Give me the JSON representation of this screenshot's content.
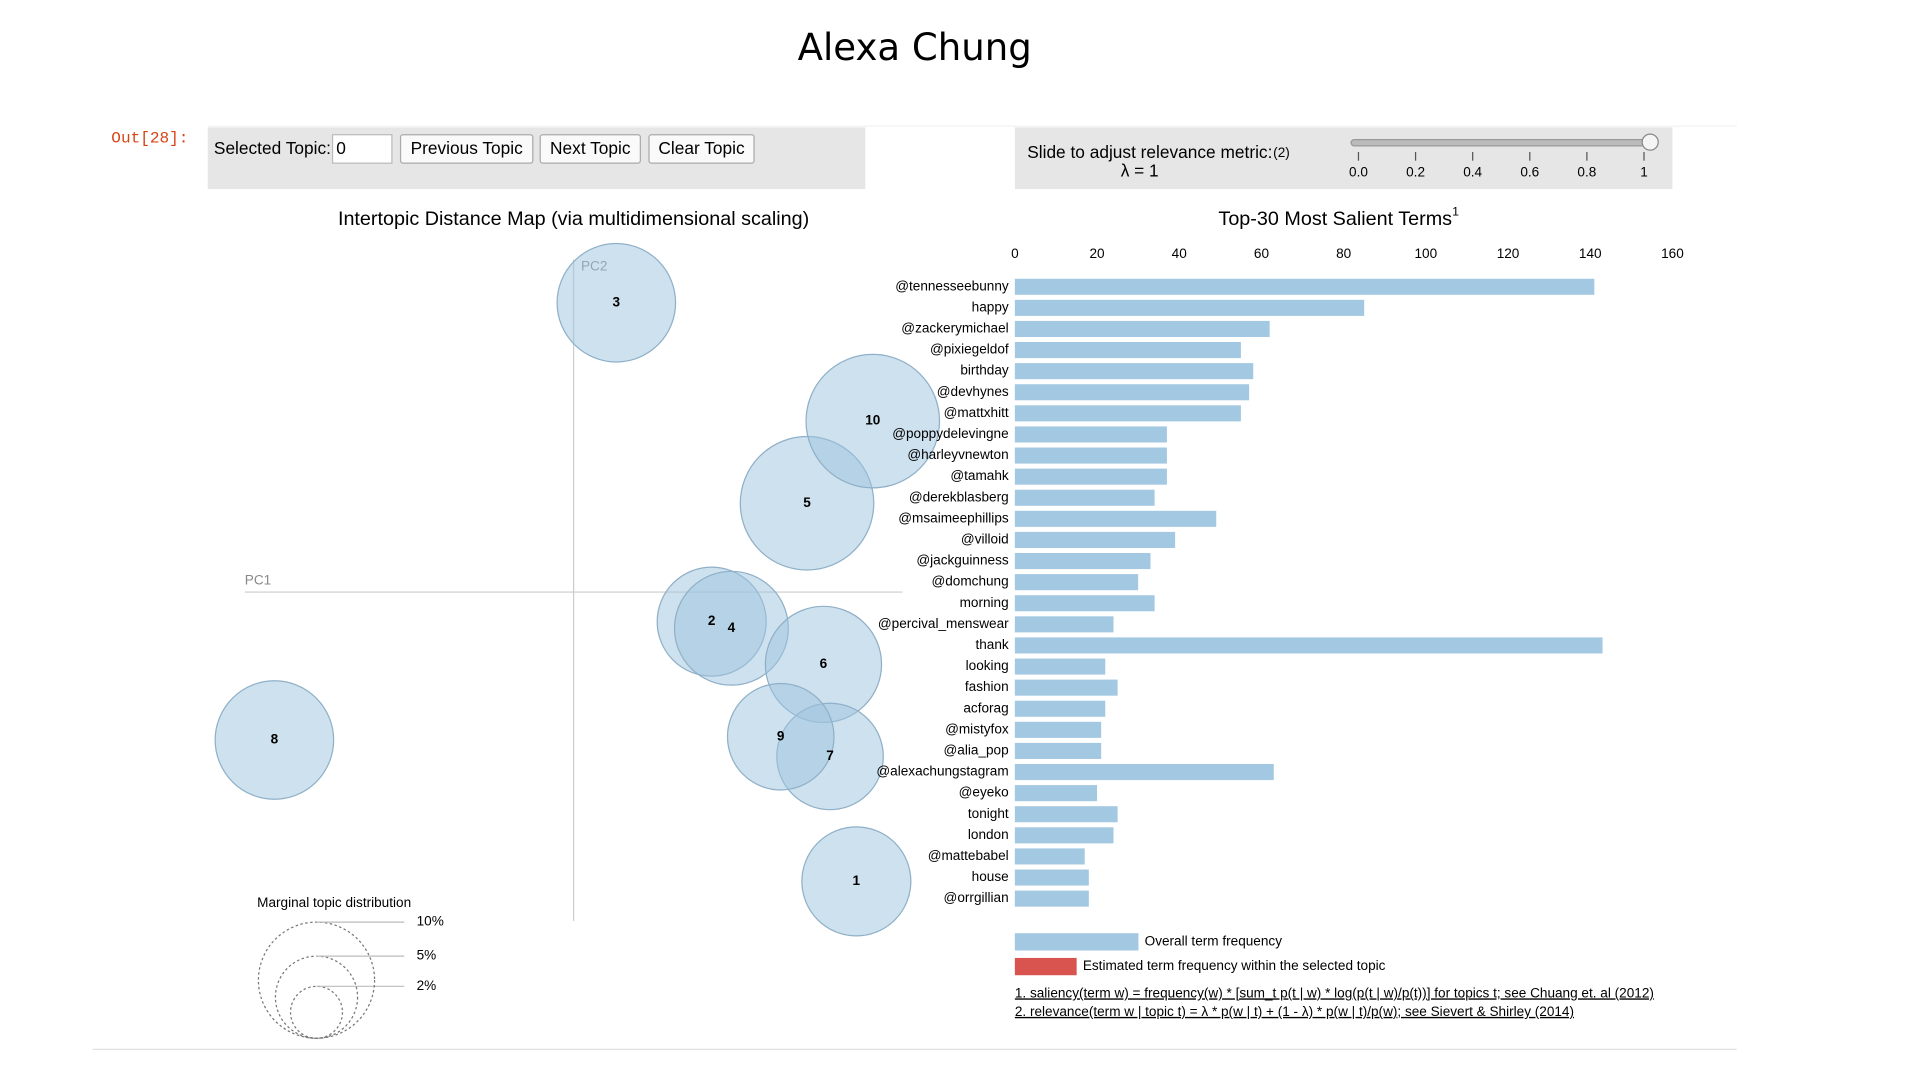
{
  "header": {
    "title": "Alexa Chung",
    "prompt": "Out[28]:"
  },
  "controls": {
    "selected_topic_label": "Selected Topic:",
    "selected_topic_value": "0",
    "buttons": [
      "Previous Topic",
      "Next Topic",
      "Clear Topic"
    ],
    "slider": {
      "label": "Slide to adjust relevance metric:",
      "label_note": "(2)",
      "lambda": "λ = 1",
      "value": 1,
      "range": [
        0,
        1
      ],
      "ticks": [
        {
          "value": 0,
          "label": "0.0"
        },
        {
          "value": 0.2,
          "label": "0.2"
        },
        {
          "value": 0.4,
          "label": "0.4"
        },
        {
          "value": 0.6,
          "label": "0.6"
        },
        {
          "value": 0.8,
          "label": "0.8"
        },
        1
      ]
    }
  },
  "chart_data": [
    {
      "type": "bubble",
      "title": "Intertopic Distance Map (via multidimensional scaling)",
      "x_label": "PC1",
      "y_label": "PC2",
      "xlim": [
        -1,
        1
      ],
      "ylim": [
        -1,
        1
      ],
      "color": "#9dc3de",
      "labels": [
        1,
        2,
        3,
        4,
        5,
        6,
        7,
        8,
        9,
        10
      ],
      "x": [
        0.86,
        0.42,
        0.13,
        0.48,
        0.71,
        0.76,
        0.78,
        -0.91,
        0.63,
        0.91
      ],
      "y": [
        -0.88,
        -0.09,
        0.88,
        -0.11,
        0.27,
        -0.22,
        -0.5,
        -0.45,
        -0.44,
        0.52
      ],
      "sizes": [
        8.8,
        8.8,
        10.4,
        9.6,
        13.2,
        10.0,
        8.4,
        10.4,
        8.4,
        13.2
      ],
      "size_legend": {
        "title": "Marginal topic distribution",
        "values": [
          {
            "value": 2,
            "label": "2%"
          },
          {
            "value": 5,
            "label": "5%"
          },
          {
            "value": 10,
            "label": "10%"
          }
        ]
      }
    },
    {
      "type": "bar",
      "orientation": "horizontal",
      "title": "Top-30 Most Salient Terms",
      "title_note": "1",
      "categories": [
        "@tennesseebunny",
        "happy",
        "@zackerymichael",
        "@pixiegeldof",
        "birthday",
        "@devhynes",
        "@mattxhitt",
        "@poppydelevingne",
        "@harleyvnewton",
        "@tamahk",
        "@derekblasberg",
        "@msaimeephillips",
        "@villoid",
        "@jackguinness",
        "@domchung",
        "morning",
        "@percival_menswear",
        "thank",
        "looking",
        "fashion",
        "acforag",
        "@mistyfox",
        "@alia_pop",
        "@alexachungstagram",
        "@eyeko",
        "tonight",
        "london",
        "@mattebabel",
        "house",
        "@orrgillian"
      ],
      "series": [
        {
          "name": "Overall term frequency",
          "color": "#a3c8e2",
          "values": [
            141,
            85,
            62,
            55,
            58,
            57,
            55,
            37,
            37,
            37,
            34,
            49,
            39,
            33,
            30,
            34,
            24,
            143,
            22,
            25,
            22,
            21,
            21,
            63,
            20,
            25,
            24,
            17,
            18,
            18
          ]
        },
        {
          "name": "Estimated term frequency within the selected topic",
          "color": "#d9534f"
        }
      ],
      "xlim": [
        0,
        160
      ],
      "xticks": [
        0,
        20,
        40,
        60,
        80,
        100,
        120,
        140,
        160
      ],
      "notes": [
        "1. saliency(term w) = frequency(w) * [sum_t p(t | w) * log(p(t | w)/p(t))] for topics t; see Chuang et. al (2012)",
        "2. relevance(term w | topic t) = λ * p(w | t) + (1 - λ) * p(w | t)/p(w); see Sievert & Shirley (2014)"
      ]
    }
  ]
}
